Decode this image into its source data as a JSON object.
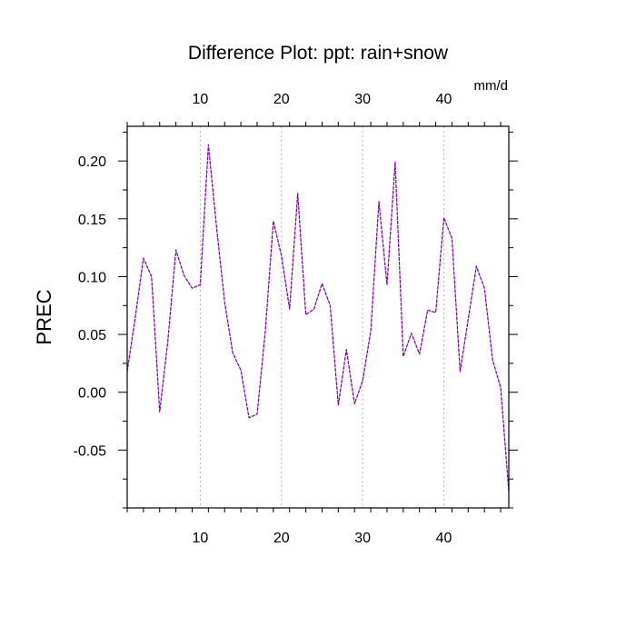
{
  "chart_data": {
    "type": "line",
    "title": "Difference Plot: ppt: rain+snow",
    "units_label": "mm/d",
    "ylabel": "PREC",
    "xlim": [
      1,
      48
    ],
    "ylim": [
      -0.1,
      0.23
    ],
    "xticks": [
      10,
      20,
      30,
      40
    ],
    "xtick_labels": [
      "10",
      "20",
      "30",
      "40"
    ],
    "yticks": [
      -0.05,
      0.0,
      0.05,
      0.1,
      0.15,
      0.2
    ],
    "ytick_labels": [
      "-0.05",
      "0.00",
      "0.05",
      "0.10",
      "0.15",
      "0.20"
    ],
    "x": [
      1,
      2,
      3,
      4,
      5,
      6,
      7,
      8,
      9,
      10,
      11,
      12,
      13,
      14,
      15,
      16,
      17,
      18,
      19,
      20,
      21,
      22,
      23,
      24,
      25,
      26,
      27,
      28,
      29,
      30,
      31,
      32,
      33,
      34,
      35,
      36,
      37,
      38,
      39,
      40,
      41,
      42,
      43,
      44,
      45,
      46,
      47,
      48
    ],
    "series": [
      {
        "values": [
          0.018,
          0.065,
          0.116,
          0.1,
          -0.017,
          0.044,
          0.123,
          0.101,
          0.09,
          0.093,
          0.214,
          0.143,
          0.078,
          0.034,
          0.019,
          -0.022,
          -0.019,
          0.052,
          0.148,
          0.118,
          0.072,
          0.172,
          0.067,
          0.072,
          0.094,
          0.075,
          -0.011,
          0.037,
          -0.01,
          0.01,
          0.053,
          0.165,
          0.093,
          0.199,
          0.031,
          0.051,
          0.033,
          0.071,
          0.069,
          0.151,
          0.133,
          0.018,
          0.063,
          0.109,
          0.09,
          0.028,
          0.004,
          -0.086
        ],
        "color": "#7a00b8",
        "style": "dashed"
      }
    ],
    "grid": {
      "x": true,
      "y": false
    },
    "colors": {
      "top_ticks": "#0000ff",
      "bottom_ticks": "#ff0000",
      "grid": "#b8b8b8",
      "axis": "#000000",
      "text": "#000000"
    }
  }
}
